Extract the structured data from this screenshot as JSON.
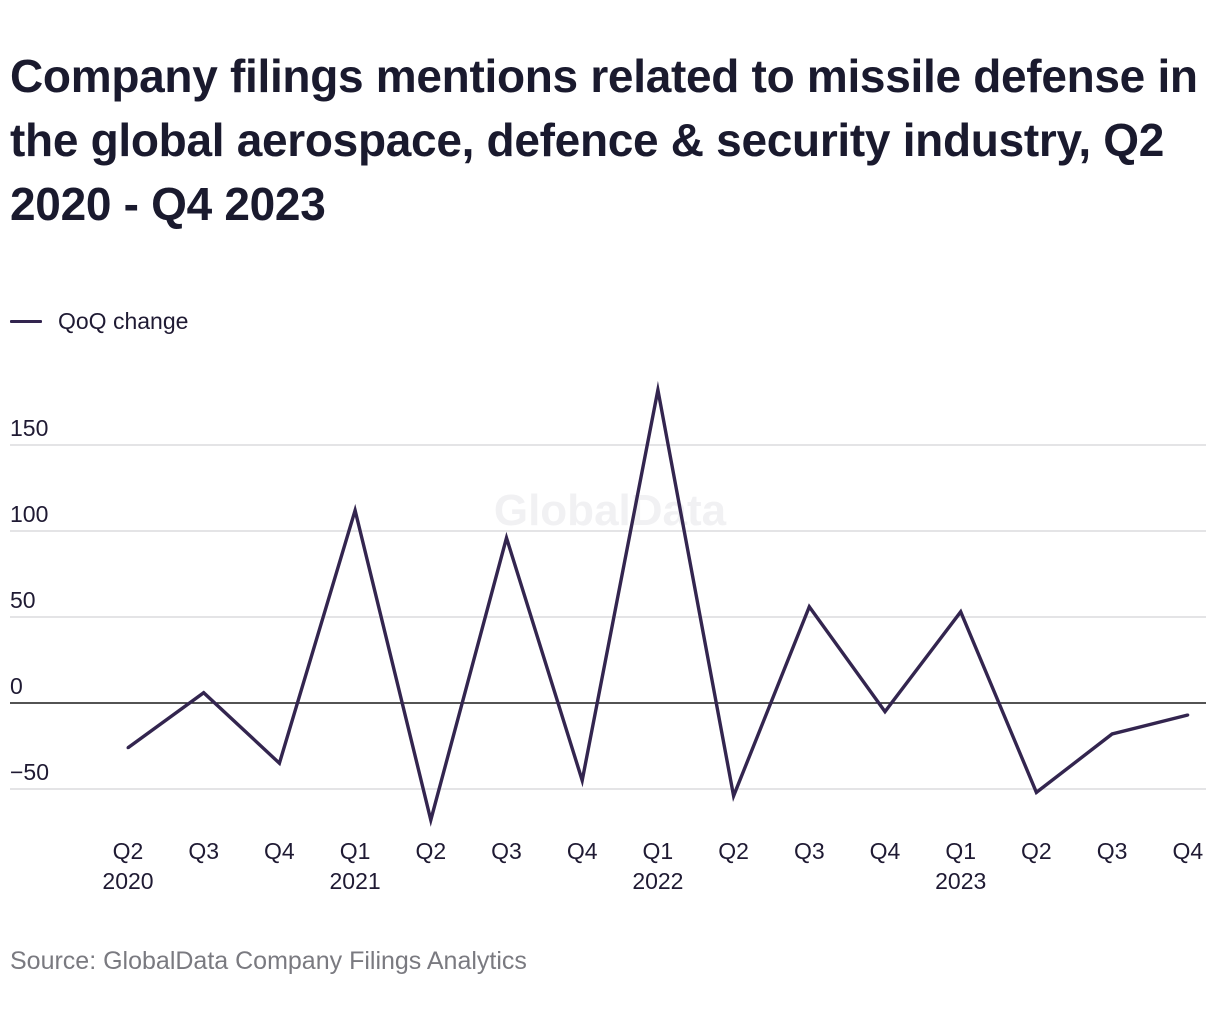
{
  "title": "Company filings mentions related to missile defense in the global aerospace, defence & security industry, Q2 2020 - Q4 2023",
  "legend": {
    "label": "QoQ change",
    "color": "#33254f"
  },
  "watermark": "GlobalData",
  "source": "Source: GlobalData Company Filings Analytics",
  "chart_data": {
    "type": "line",
    "title": "Company filings mentions related to missile defense in the global aerospace, defence & security industry, Q2 2020 - Q4 2023",
    "xlabel": "",
    "ylabel": "",
    "categories": [
      "Q2 2020",
      "Q3 2020",
      "Q4 2020",
      "Q1 2021",
      "Q2 2021",
      "Q3 2021",
      "Q4 2021",
      "Q1 2022",
      "Q2 2022",
      "Q3 2022",
      "Q4 2022",
      "Q1 2023",
      "Q2 2023",
      "Q3 2023",
      "Q4 2023"
    ],
    "tick_labels": [
      {
        "q": "Q2",
        "year": "2020"
      },
      {
        "q": "Q3",
        "year": ""
      },
      {
        "q": "Q4",
        "year": ""
      },
      {
        "q": "Q1",
        "year": "2021"
      },
      {
        "q": "Q2",
        "year": ""
      },
      {
        "q": "Q3",
        "year": ""
      },
      {
        "q": "Q4",
        "year": ""
      },
      {
        "q": "Q1",
        "year": "2022"
      },
      {
        "q": "Q2",
        "year": ""
      },
      {
        "q": "Q3",
        "year": ""
      },
      {
        "q": "Q4",
        "year": ""
      },
      {
        "q": "Q1",
        "year": "2023"
      },
      {
        "q": "Q2",
        "year": ""
      },
      {
        "q": "Q3",
        "year": ""
      },
      {
        "q": "Q4",
        "year": ""
      }
    ],
    "series": [
      {
        "name": "QoQ change",
        "color": "#33254f",
        "values": [
          -26,
          6,
          -35,
          112,
          -68,
          96,
          -45,
          182,
          -54,
          56,
          -5,
          53,
          -52,
          -18,
          -7
        ]
      }
    ],
    "y_ticks": [
      {
        "value": 150,
        "label": "150"
      },
      {
        "value": 100,
        "label": "100"
      },
      {
        "value": 50,
        "label": "50"
      },
      {
        "value": 0,
        "label": "0"
      },
      {
        "value": -50,
        "label": "−50"
      }
    ],
    "ylim": [
      -75,
      185
    ],
    "grid": true,
    "legend_position": "top-left"
  }
}
